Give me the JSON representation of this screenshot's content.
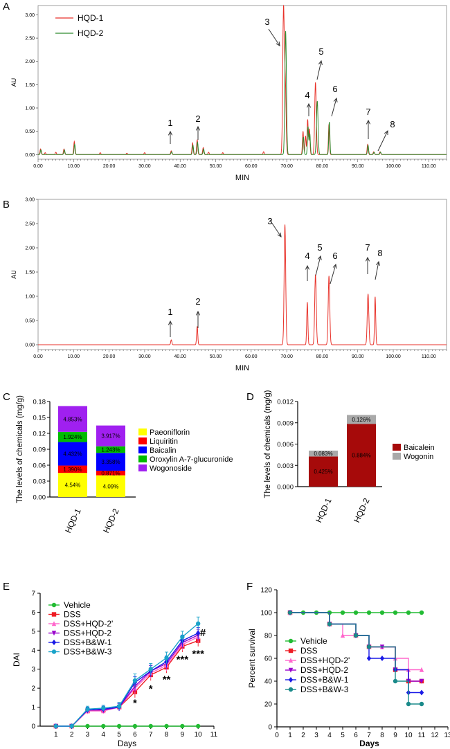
{
  "chart_data": [
    {
      "panel": "A",
      "type": "line",
      "xlabel": "MIN",
      "ylabel": "AU",
      "xlim": [
        0,
        115
      ],
      "ylim": [
        -0.1,
        3.2
      ],
      "xticks": [
        "0.00",
        "10.00",
        "20.00",
        "30.00",
        "40.00",
        "50.00",
        "60.00",
        "70.00",
        "80.00",
        "90.00",
        "100.00",
        "110.00"
      ],
      "yticks": [
        "0.00",
        "0.50",
        "1.00",
        "1.50",
        "2.00",
        "2.50",
        "3.00"
      ],
      "legend": [
        "HQD-1",
        "HQD-2"
      ],
      "colors": [
        "#e8322a",
        "#2e8b2e"
      ],
      "series": [
        {
          "name": "HQD-1",
          "peaks": [
            [
              0.7,
              0.12
            ],
            [
              2,
              0.04
            ],
            [
              5,
              0.05
            ],
            [
              7.3,
              0.12
            ],
            [
              10.2,
              0.28
            ],
            [
              17.5,
              0.04
            ],
            [
              25,
              0.03
            ],
            [
              30,
              0.04
            ],
            [
              37.5,
              0.08
            ],
            [
              43.5,
              0.25
            ],
            [
              44.8,
              0.32
            ],
            [
              46.5,
              0.15
            ],
            [
              48,
              0.05
            ],
            [
              52,
              0.04
            ],
            [
              63.5,
              0.06
            ],
            [
              69.1,
              3.08
            ],
            [
              69.6,
              1.5
            ],
            [
              74.6,
              0.5
            ],
            [
              75.3,
              0.4
            ],
            [
              75.9,
              0.75
            ],
            [
              76.4,
              0.55
            ],
            [
              78.1,
              1.55
            ],
            [
              81.9,
              0.65
            ],
            [
              92.8,
              0.22
            ],
            [
              94.5,
              0.06
            ],
            [
              96.3,
              0.06
            ]
          ]
        },
        {
          "name": "HQD-2",
          "peaks": [
            [
              0.8,
              0.1
            ],
            [
              7.4,
              0.1
            ],
            [
              10.3,
              0.22
            ],
            [
              37.6,
              0.06
            ],
            [
              43.6,
              0.2
            ],
            [
              44.9,
              0.26
            ],
            [
              46.6,
              0.12
            ],
            [
              69.7,
              2.65
            ],
            [
              74.7,
              0.38
            ],
            [
              76,
              0.6
            ],
            [
              76.5,
              0.45
            ],
            [
              78.6,
              1.15
            ],
            [
              82,
              0.7
            ],
            [
              92.9,
              0.2
            ],
            [
              94.6,
              0.05
            ],
            [
              96.4,
              0.05
            ]
          ]
        }
      ],
      "annotations": [
        "1",
        "2",
        "3",
        "4",
        "5",
        "6",
        "7",
        "8"
      ]
    },
    {
      "panel": "B",
      "type": "line",
      "xlabel": "MIN",
      "ylabel": "AU",
      "xlim": [
        0,
        115
      ],
      "ylim": [
        -0.1,
        3.0
      ],
      "xticks": [
        "0.00",
        "10.00",
        "20.00",
        "30.00",
        "40.00",
        "50.00",
        "60.00",
        "70.00",
        "80.00",
        "90.00",
        "100.00",
        "110.00"
      ],
      "yticks": [
        "0.00",
        "0.50",
        "1.00",
        "1.50",
        "2.00",
        "2.50",
        "3.00"
      ],
      "series": [
        {
          "name": "standards",
          "peaks": [
            [
              37.5,
              0.1
            ],
            [
              44.8,
              0.38
            ],
            [
              69.5,
              2.48
            ],
            [
              75.8,
              0.88
            ],
            [
              78.1,
              1.45
            ],
            [
              81.9,
              1.42
            ],
            [
              92.9,
              1.05
            ],
            [
              94.9,
              0.99
            ]
          ]
        }
      ],
      "annotations": [
        "1",
        "2",
        "3",
        "4",
        "5",
        "6",
        "7",
        "8"
      ]
    },
    {
      "panel": "C",
      "type": "bar",
      "stacked": true,
      "categories": [
        "HQD-1",
        "HQD-2"
      ],
      "ylabel": "The levels of chemicals (mg/g)",
      "ylim": [
        0,
        0.18
      ],
      "yticks": [
        "0.00",
        "0.03",
        "0.06",
        "0.09",
        "0.12",
        "0.15",
        "0.18"
      ],
      "series": [
        {
          "name": "Paeoniflorin",
          "color": "#ffff00",
          "values": [
            0.0454,
            0.0409
          ],
          "labels": [
            "4.54%",
            "4.09%"
          ]
        },
        {
          "name": "Liquiritin",
          "color": "#ff0000",
          "values": [
            0.0139,
            0.0087
          ],
          "labels": [
            "1.390%",
            "0.871%"
          ]
        },
        {
          "name": "Baicalin",
          "color": "#0000ff",
          "values": [
            0.0443,
            0.0336
          ],
          "labels": [
            "4.432%",
            "3.358%"
          ]
        },
        {
          "name": "Oroxylin A-7-glucuronide",
          "color": "#00bb00",
          "values": [
            0.0192,
            0.0124
          ],
          "labels": [
            "1.924%",
            "1.243%"
          ]
        },
        {
          "name": "Wogonoside",
          "color": "#a020f0",
          "values": [
            0.0485,
            0.0392
          ],
          "labels": [
            "4.853%",
            "3.917%"
          ]
        }
      ]
    },
    {
      "panel": "D",
      "type": "bar",
      "stacked": true,
      "categories": [
        "HQD-1",
        "HQD-2"
      ],
      "ylabel": "The levels of chemicals (mg/g)",
      "ylim": [
        0,
        0.012
      ],
      "yticks": [
        "0.000",
        "0.003",
        "0.006",
        "0.009",
        "0.012"
      ],
      "series": [
        {
          "name": "Baicalein",
          "color": "#a60a0a",
          "values": [
            0.00425,
            0.00884
          ],
          "labels": [
            "0.425%",
            "0.884%"
          ]
        },
        {
          "name": "Wogonin",
          "color": "#a9a9a9",
          "values": [
            0.00083,
            0.00126
          ],
          "labels": [
            "0.083%",
            "0.126%"
          ]
        }
      ]
    },
    {
      "panel": "E",
      "type": "line",
      "xlabel": "Days",
      "ylabel": "DAI",
      "xlim": [
        0,
        11
      ],
      "ylim": [
        0,
        7
      ],
      "xticks": [
        "1",
        "2",
        "3",
        "4",
        "5",
        "6",
        "7",
        "8",
        "9",
        "10",
        "11"
      ],
      "yticks": [
        "0",
        "1",
        "2",
        "3",
        "4",
        "5",
        "6",
        "7"
      ],
      "x": [
        1,
        2,
        3,
        4,
        5,
        6,
        7,
        8,
        9,
        10
      ],
      "series": [
        {
          "name": "Vehicle",
          "color": "#22bb33",
          "marker": "circle",
          "values": [
            0,
            0,
            0,
            0,
            0,
            0,
            0,
            0,
            0,
            0
          ],
          "err": [
            0,
            0,
            0,
            0,
            0,
            0,
            0,
            0,
            0,
            0
          ]
        },
        {
          "name": "DSS",
          "color": "#ee1c24",
          "marker": "square",
          "values": [
            0,
            0,
            0.8,
            0.85,
            1.0,
            1.8,
            2.7,
            3.1,
            4.2,
            4.5
          ],
          "err": [
            0,
            0,
            0.15,
            0.15,
            0.2,
            0.3,
            0.3,
            0.3,
            0.3,
            0.3
          ]
        },
        {
          "name": "DSS+HQD-2'",
          "color": "#ff66cc",
          "marker": "triangle-up",
          "values": [
            0,
            0,
            0.8,
            0.8,
            1.0,
            2.0,
            2.8,
            3.2,
            4.3,
            4.7
          ],
          "err": [
            0,
            0,
            0.15,
            0.15,
            0.2,
            0.3,
            0.3,
            0.3,
            0.3,
            0.3
          ]
        },
        {
          "name": "DSS+HQD-2",
          "color": "#9900cc",
          "marker": "triangle-down",
          "values": [
            0,
            0,
            0.85,
            0.85,
            1.0,
            2.1,
            2.9,
            3.3,
            4.4,
            4.8
          ],
          "err": [
            0,
            0,
            0.15,
            0.15,
            0.2,
            0.3,
            0.3,
            0.3,
            0.3,
            0.3
          ]
        },
        {
          "name": "DSS+B&W-1",
          "color": "#1a1ae6",
          "marker": "diamond",
          "values": [
            0,
            0,
            0.85,
            0.9,
            1.0,
            2.3,
            2.9,
            3.4,
            4.5,
            4.9
          ],
          "err": [
            0,
            0,
            0.15,
            0.15,
            0.2,
            0.3,
            0.3,
            0.3,
            0.3,
            0.3
          ]
        },
        {
          "name": "DSS+B&W-3",
          "color": "#1aa3c9",
          "marker": "circle",
          "values": [
            0,
            0,
            0.9,
            0.95,
            1.05,
            2.4,
            3.0,
            3.6,
            4.7,
            5.4
          ],
          "err": [
            0,
            0,
            0.15,
            0.15,
            0.2,
            0.35,
            0.3,
            0.3,
            0.3,
            0.35
          ]
        }
      ],
      "annotations": [
        {
          "x": 6,
          "y": 1.25,
          "text": "*"
        },
        {
          "x": 7,
          "y": 2.0,
          "text": "*"
        },
        {
          "x": 8,
          "y": 2.5,
          "text": "**"
        },
        {
          "x": 9,
          "y": 3.55,
          "text": "***"
        },
        {
          "x": 10,
          "y": 3.85,
          "text": "***"
        },
        {
          "x": 10.3,
          "y": 4.95,
          "text": "#"
        }
      ]
    },
    {
      "panel": "F",
      "type": "line",
      "step": true,
      "xlabel": "Days",
      "ylabel": "Percent survival",
      "xlim": [
        0,
        13
      ],
      "ylim": [
        0,
        120
      ],
      "xticks": [
        "0",
        "1",
        "2",
        "3",
        "4",
        "5",
        "6",
        "7",
        "8",
        "9",
        "10",
        "11",
        "12",
        "13"
      ],
      "yticks": [
        "0",
        "20",
        "40",
        "60",
        "80",
        "100",
        "120"
      ],
      "series": [
        {
          "name": "Vehicle",
          "color": "#22bb33",
          "marker": "circle",
          "points": [
            [
              1,
              100
            ],
            [
              2,
              100
            ],
            [
              3,
              100
            ],
            [
              4,
              100
            ],
            [
              5,
              100
            ],
            [
              6,
              100
            ],
            [
              7,
              100
            ],
            [
              8,
              100
            ],
            [
              9,
              100
            ],
            [
              10,
              100
            ],
            [
              11,
              100
            ]
          ]
        },
        {
          "name": "DSS",
          "color": "#ee1c24",
          "marker": "square",
          "points": [
            [
              1,
              100
            ],
            [
              4,
              90
            ],
            [
              6,
              80
            ],
            [
              7,
              70
            ],
            [
              9,
              50
            ],
            [
              10,
              40
            ],
            [
              11,
              40
            ]
          ]
        },
        {
          "name": "DSS+HQD-2'",
          "color": "#ff66cc",
          "marker": "triangle-up",
          "points": [
            [
              1,
              100
            ],
            [
              4,
              90
            ],
            [
              5,
              80
            ],
            [
              6,
              80
            ],
            [
              7,
              70
            ],
            [
              8,
              70
            ],
            [
              9,
              60
            ],
            [
              10,
              50
            ],
            [
              11,
              50
            ]
          ]
        },
        {
          "name": "DSS+HQD-2",
          "color": "#9900cc",
          "marker": "triangle-down",
          "points": [
            [
              1,
              100
            ],
            [
              4,
              90
            ],
            [
              6,
              80
            ],
            [
              7,
              70
            ],
            [
              8,
              70
            ],
            [
              9,
              50
            ],
            [
              10,
              40
            ],
            [
              11,
              40
            ]
          ]
        },
        {
          "name": "DSS+B&W-1",
          "color": "#1a1ae6",
          "marker": "diamond",
          "points": [
            [
              1,
              100
            ],
            [
              4,
              90
            ],
            [
              6,
              80
            ],
            [
              7,
              60
            ],
            [
              8,
              60
            ],
            [
              9,
              50
            ],
            [
              10,
              30
            ],
            [
              11,
              30
            ]
          ]
        },
        {
          "name": "DSS+B&W-3",
          "color": "#1a8a8a",
          "marker": "circle",
          "points": [
            [
              1,
              100
            ],
            [
              4,
              90
            ],
            [
              6,
              80
            ],
            [
              7,
              70
            ],
            [
              9,
              40
            ],
            [
              10,
              20
            ],
            [
              11,
              20
            ]
          ]
        }
      ]
    }
  ]
}
